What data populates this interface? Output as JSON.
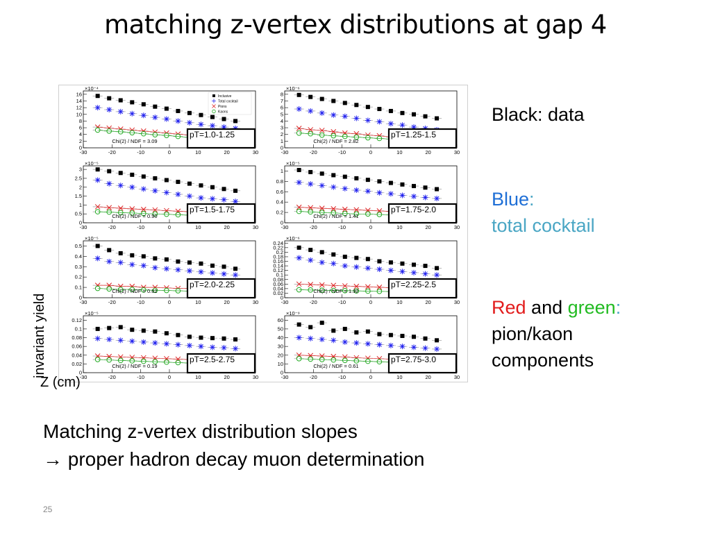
{
  "title": "matching z-vertex distributions at gap 4",
  "axis_texts": {
    "ylabel": "invariant yield",
    "xlabel": "Z (cm)"
  },
  "legend_text": {
    "black": "Black: data",
    "blue_word": "Blue",
    "blue_colon": ":",
    "blue_desc": "total cocktail",
    "red_word": "Red",
    "and_word": "and",
    "green_word": "green",
    "green_colon": ":",
    "rg_desc_1": "pion/kaon",
    "rg_desc_2": "components"
  },
  "note": {
    "line1": "Matching z-vertex distribution slopes",
    "line2": "→ proper hadron decay muon determination"
  },
  "page_number": "25",
  "colors": {
    "data": "#000000",
    "total": "#2222ee",
    "pions": "#dd2222",
    "kaons": "#22aa22",
    "blue_text": "#1f6fd6",
    "cyan_text": "#4aa6c4",
    "red_text": "#e21c1c",
    "green_text": "#22bb22"
  },
  "chart_data": [
    {
      "type": "scatter",
      "title": "pT=1.0-1.25",
      "xlim": [
        -30,
        30
      ],
      "ylim": [
        0,
        17
      ],
      "scale": "×10⁻⁴",
      "yticks": [
        "0",
        "2",
        "4",
        "6",
        "8",
        "10",
        "12",
        "14",
        "16"
      ],
      "ytick_values": [
        0,
        2,
        4,
        6,
        8,
        10,
        12,
        14,
        16
      ],
      "chi2": "Chi(2) / NDF = 3.09",
      "legend": [
        "Inclusive",
        "Total cocktail",
        "Pions",
        "Kaons"
      ],
      "x": [
        -25,
        -21,
        -17,
        -13,
        -9,
        -5,
        -1,
        3,
        7,
        11,
        15,
        19,
        23
      ],
      "series": [
        {
          "name": "Inclusive",
          "values": [
            15.5,
            14.8,
            14.2,
            13.6,
            13.0,
            12.3,
            11.7,
            11.0,
            10.4,
            9.8,
            9.2,
            8.6,
            8.0
          ]
        },
        {
          "name": "Total cocktail",
          "values": [
            12.0,
            11.4,
            10.8,
            10.2,
            9.7,
            9.1,
            8.6,
            8.0,
            7.5,
            7.0,
            6.6,
            6.2,
            5.8
          ]
        },
        {
          "name": "Pions",
          "values": [
            6.2,
            5.9,
            5.6,
            5.3,
            5.0,
            4.7,
            4.4,
            4.1,
            3.8,
            3.5,
            3.2,
            3.0,
            2.8
          ]
        },
        {
          "name": "Kaons",
          "values": [
            5.3,
            5.0,
            4.8,
            4.5,
            4.2,
            3.9,
            3.7,
            3.4,
            3.1,
            2.9,
            2.6,
            2.4,
            2.2
          ]
        }
      ]
    },
    {
      "type": "scatter",
      "title": "pT=1.25-1.5",
      "xlim": [
        -30,
        30
      ],
      "ylim": [
        0,
        8.5
      ],
      "scale": "×10⁻⁶",
      "yticks": [
        "0",
        "1",
        "2",
        "3",
        "4",
        "5",
        "6",
        "7",
        "8"
      ],
      "ytick_values": [
        0,
        1,
        2,
        3,
        4,
        5,
        6,
        7,
        8
      ],
      "chi2": "Chi(2) / NDF = 2.82",
      "x": [
        -25,
        -21,
        -17,
        -13,
        -9,
        -5,
        -1,
        3,
        7,
        11,
        15,
        19,
        23
      ],
      "series": [
        {
          "name": "Inclusive",
          "values": [
            7.9,
            7.6,
            7.3,
            7.0,
            6.7,
            6.4,
            6.1,
            5.8,
            5.5,
            5.2,
            5.0,
            4.7,
            4.4
          ]
        },
        {
          "name": "Total cocktail",
          "values": [
            5.8,
            5.5,
            5.2,
            4.9,
            4.7,
            4.4,
            4.1,
            3.9,
            3.6,
            3.4,
            3.1,
            2.9,
            2.7
          ]
        },
        {
          "name": "Pions",
          "values": [
            2.9,
            2.7,
            2.6,
            2.4,
            2.2,
            2.1,
            1.9,
            1.8,
            1.6,
            1.5,
            1.4,
            1.3,
            1.2
          ]
        },
        {
          "name": "Kaons",
          "values": [
            2.2,
            2.1,
            1.9,
            1.8,
            1.7,
            1.6,
            1.5,
            1.4,
            1.3,
            1.2,
            1.1,
            1.0,
            0.9
          ]
        }
      ]
    },
    {
      "type": "scatter",
      "title": "pT=1.5-1.75",
      "xlim": [
        -30,
        30
      ],
      "ylim": [
        0,
        3.2
      ],
      "scale": "×10⁻⁵",
      "yticks": [
        "0",
        "0.5",
        "1",
        "1.5",
        "2",
        "2.5",
        "3"
      ],
      "ytick_values": [
        0,
        0.5,
        1,
        1.5,
        2,
        2.5,
        3
      ],
      "chi2": "Chi(2) / NDF = 0.90",
      "x": [
        -25,
        -21,
        -17,
        -13,
        -9,
        -5,
        -1,
        3,
        7,
        11,
        15,
        19,
        23
      ],
      "series": [
        {
          "name": "Inclusive",
          "values": [
            3.0,
            2.9,
            2.8,
            2.7,
            2.6,
            2.5,
            2.4,
            2.3,
            2.2,
            2.1,
            2.0,
            1.9,
            1.8
          ]
        },
        {
          "name": "Total cocktail",
          "values": [
            2.4,
            2.2,
            2.1,
            2.0,
            1.9,
            1.8,
            1.7,
            1.6,
            1.5,
            1.4,
            1.35,
            1.3,
            1.2
          ]
        },
        {
          "name": "Pions",
          "values": [
            0.9,
            0.85,
            0.82,
            0.78,
            0.75,
            0.72,
            0.68,
            0.65,
            0.62,
            0.59,
            0.56,
            0.53,
            0.5
          ]
        },
        {
          "name": "Kaons",
          "values": [
            0.62,
            0.6,
            0.57,
            0.55,
            0.52,
            0.5,
            0.48,
            0.45,
            0.43,
            0.41,
            0.39,
            0.37,
            0.35
          ]
        }
      ]
    },
    {
      "type": "scatter",
      "title": "pT=1.75-2.0",
      "xlim": [
        -30,
        30
      ],
      "ylim": [
        0,
        1.1
      ],
      "scale": "×10⁻⁵",
      "yticks": [
        "0",
        "0.2",
        "0.4",
        "0.6",
        "0.8",
        "1"
      ],
      "ytick_values": [
        0,
        0.2,
        0.4,
        0.6,
        0.8,
        1
      ],
      "chi2": "Chi(2) / NDF = 1.41",
      "x": [
        -25,
        -21,
        -17,
        -13,
        -9,
        -5,
        -1,
        3,
        7,
        11,
        15,
        19,
        23
      ],
      "series": [
        {
          "name": "Inclusive",
          "values": [
            1.02,
            0.98,
            0.95,
            0.92,
            0.89,
            0.86,
            0.83,
            0.8,
            0.77,
            0.74,
            0.71,
            0.68,
            0.65
          ]
        },
        {
          "name": "Total cocktail",
          "values": [
            0.78,
            0.75,
            0.72,
            0.69,
            0.66,
            0.63,
            0.61,
            0.58,
            0.56,
            0.53,
            0.51,
            0.49,
            0.47
          ]
        },
        {
          "name": "Pions",
          "values": [
            0.3,
            0.29,
            0.28,
            0.27,
            0.26,
            0.25,
            0.24,
            0.23,
            0.22,
            0.21,
            0.2,
            0.19,
            0.18
          ]
        },
        {
          "name": "Kaons",
          "values": [
            0.22,
            0.21,
            0.2,
            0.19,
            0.18,
            0.17,
            0.17,
            0.16,
            0.15,
            0.14,
            0.14,
            0.13,
            0.12
          ]
        }
      ]
    },
    {
      "type": "scatter",
      "title": "pT=2.0-2.25",
      "xlim": [
        -30,
        30
      ],
      "ylim": [
        0,
        0.55
      ],
      "scale": "×10⁻⁵",
      "yticks": [
        "0",
        "0.1",
        "0.2",
        "0.3",
        "0.4",
        "0.5"
      ],
      "ytick_values": [
        0,
        0.1,
        0.2,
        0.3,
        0.4,
        0.5
      ],
      "chi2": "Chi(2) / NDF = 0.62",
      "x": [
        -25,
        -21,
        -17,
        -13,
        -9,
        -5,
        -1,
        3,
        7,
        11,
        15,
        19,
        23
      ],
      "series": [
        {
          "name": "Inclusive",
          "values": [
            0.5,
            0.46,
            0.43,
            0.41,
            0.4,
            0.38,
            0.37,
            0.35,
            0.34,
            0.33,
            0.31,
            0.3,
            0.28
          ]
        },
        {
          "name": "Total cocktail",
          "values": [
            0.38,
            0.35,
            0.34,
            0.32,
            0.31,
            0.29,
            0.28,
            0.27,
            0.26,
            0.25,
            0.24,
            0.23,
            0.22
          ]
        },
        {
          "name": "Pions",
          "values": [
            0.12,
            0.12,
            0.11,
            0.11,
            0.1,
            0.1,
            0.095,
            0.09,
            0.09,
            0.085,
            0.08,
            0.08,
            0.075
          ]
        },
        {
          "name": "Kaons",
          "values": [
            0.09,
            0.085,
            0.08,
            0.08,
            0.075,
            0.072,
            0.07,
            0.067,
            0.064,
            0.06,
            0.058,
            0.055,
            0.052
          ]
        }
      ]
    },
    {
      "type": "scatter",
      "title": "pT=2.25-2.5",
      "xlim": [
        -30,
        30
      ],
      "ylim": [
        0,
        0.25
      ],
      "scale": "×10⁻⁶",
      "yticks": [
        "0",
        "0.02",
        "0.04",
        "0.06",
        "0.08",
        "0.1",
        "0.12",
        "0.14",
        "0.16",
        "0.18",
        "0.2",
        "0.22",
        "0.24"
      ],
      "ytick_values": [
        0,
        0.02,
        0.04,
        0.06,
        0.08,
        0.1,
        0.12,
        0.14,
        0.16,
        0.18,
        0.2,
        0.22,
        0.24
      ],
      "chi2": "Chi(2) / NDF = 1.92",
      "x": [
        -25,
        -21,
        -17,
        -13,
        -9,
        -5,
        -1,
        3,
        7,
        11,
        15,
        19,
        23
      ],
      "series": [
        {
          "name": "Inclusive",
          "values": [
            0.22,
            0.21,
            0.2,
            0.19,
            0.18,
            0.175,
            0.17,
            0.16,
            0.155,
            0.15,
            0.145,
            0.14,
            0.13
          ]
        },
        {
          "name": "Total cocktail",
          "values": [
            0.175,
            0.165,
            0.155,
            0.15,
            0.14,
            0.135,
            0.13,
            0.125,
            0.12,
            0.115,
            0.11,
            0.105,
            0.1
          ]
        },
        {
          "name": "Pions",
          "values": [
            0.06,
            0.058,
            0.056,
            0.054,
            0.052,
            0.05,
            0.048,
            0.046,
            0.044,
            0.042,
            0.04,
            0.038,
            0.036
          ]
        },
        {
          "name": "Kaons",
          "values": [
            0.035,
            0.034,
            0.033,
            0.032,
            0.031,
            0.03,
            0.029,
            0.028,
            0.027,
            0.026,
            0.025,
            0.024,
            0.023
          ]
        }
      ]
    },
    {
      "type": "scatter",
      "title": "pT=2.5-2.75",
      "xlim": [
        -30,
        30
      ],
      "ylim": [
        0,
        0.13
      ],
      "scale": "×10⁻⁵",
      "yticks": [
        "0",
        "0.02",
        "0.04",
        "0.06",
        "0.08",
        "0.1",
        "0.12"
      ],
      "ytick_values": [
        0,
        0.02,
        0.04,
        0.06,
        0.08,
        0.1,
        0.12
      ],
      "chi2": "Chi(2) / NDF = 0.19",
      "x": [
        -25,
        -21,
        -17,
        -13,
        -9,
        -5,
        -1,
        3,
        7,
        11,
        15,
        19,
        23
      ],
      "series": [
        {
          "name": "Inclusive",
          "values": [
            0.1,
            0.102,
            0.104,
            0.098,
            0.096,
            0.094,
            0.09,
            0.086,
            0.082,
            0.08,
            0.079,
            0.078,
            0.076
          ]
        },
        {
          "name": "Total cocktail",
          "values": [
            0.078,
            0.076,
            0.074,
            0.072,
            0.07,
            0.068,
            0.066,
            0.064,
            0.062,
            0.06,
            0.058,
            0.057,
            0.055
          ]
        },
        {
          "name": "Pions",
          "values": [
            0.038,
            0.037,
            0.036,
            0.035,
            0.034,
            0.033,
            0.032,
            0.031,
            0.03,
            0.029,
            0.028,
            0.027,
            0.026
          ]
        },
        {
          "name": "Kaons",
          "values": [
            0.03,
            0.029,
            0.028,
            0.027,
            0.026,
            0.025,
            0.024,
            0.023,
            0.022,
            0.021,
            0.02,
            0.019,
            0.018
          ]
        }
      ]
    },
    {
      "type": "scatter",
      "title": "pT=2.75-3.0",
      "xlim": [
        -30,
        30
      ],
      "ylim": [
        0,
        65
      ],
      "scale": "×10⁻⁹",
      "yticks": [
        "0",
        "10",
        "20",
        "30",
        "40",
        "50",
        "60"
      ],
      "ytick_values": [
        0,
        10,
        20,
        30,
        40,
        50,
        60
      ],
      "chi2": "Chi(2) / NDF = 0.61",
      "x": [
        -25,
        -21,
        -17,
        -13,
        -9,
        -5,
        -1,
        3,
        7,
        11,
        15,
        19,
        23
      ],
      "series": [
        {
          "name": "Inclusive",
          "values": [
            55,
            52,
            57,
            48,
            50,
            46,
            47,
            44,
            43,
            42,
            41,
            39,
            37
          ]
        },
        {
          "name": "Total cocktail",
          "values": [
            40,
            39,
            38,
            37,
            35,
            34,
            33,
            32,
            31,
            30,
            29,
            28,
            27
          ]
        },
        {
          "name": "Pions",
          "values": [
            20,
            19.5,
            19,
            18.5,
            18,
            17,
            16.5,
            16,
            15.5,
            15,
            14.5,
            14,
            13.5
          ]
        },
        {
          "name": "Kaons",
          "values": [
            16,
            15.5,
            15,
            14.5,
            14,
            13.5,
            13,
            12.5,
            12,
            11.5,
            11,
            10.5,
            10
          ]
        }
      ]
    }
  ]
}
